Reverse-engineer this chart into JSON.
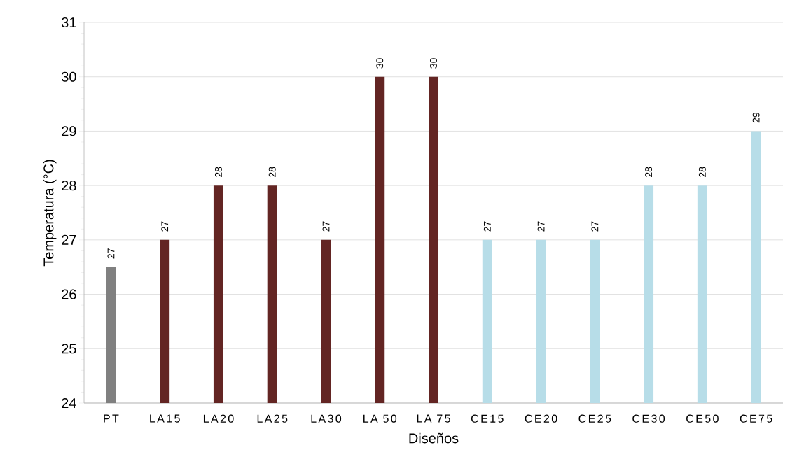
{
  "chart_data": {
    "type": "bar",
    "xlabel": "Diseños",
    "ylabel": "Temperatura (°C)",
    "categories": [
      "PT",
      "LA15",
      "LA20",
      "LA25",
      "LA30",
      "LA 50",
      "LA 75",
      "CE15",
      "CE20",
      "CE25",
      "CE30",
      "CE50",
      "CE75"
    ],
    "values": [
      26.5,
      27,
      28,
      28,
      27,
      30,
      30,
      27,
      27,
      27,
      28,
      28,
      29
    ],
    "value_labels": [
      "27",
      "27",
      "28",
      "28",
      "27",
      "30",
      "30",
      "27",
      "27",
      "27",
      "28",
      "28",
      "29"
    ],
    "colors": [
      "#808080",
      "#632523",
      "#632523",
      "#632523",
      "#632523",
      "#632523",
      "#632523",
      "#b7dde8",
      "#b7dde8",
      "#b7dde8",
      "#b7dde8",
      "#b7dde8",
      "#b7dde8"
    ],
    "ylim": [
      24,
      31
    ],
    "yticks": [
      24,
      25,
      26,
      27,
      28,
      29,
      30,
      31
    ],
    "grid": "y"
  }
}
